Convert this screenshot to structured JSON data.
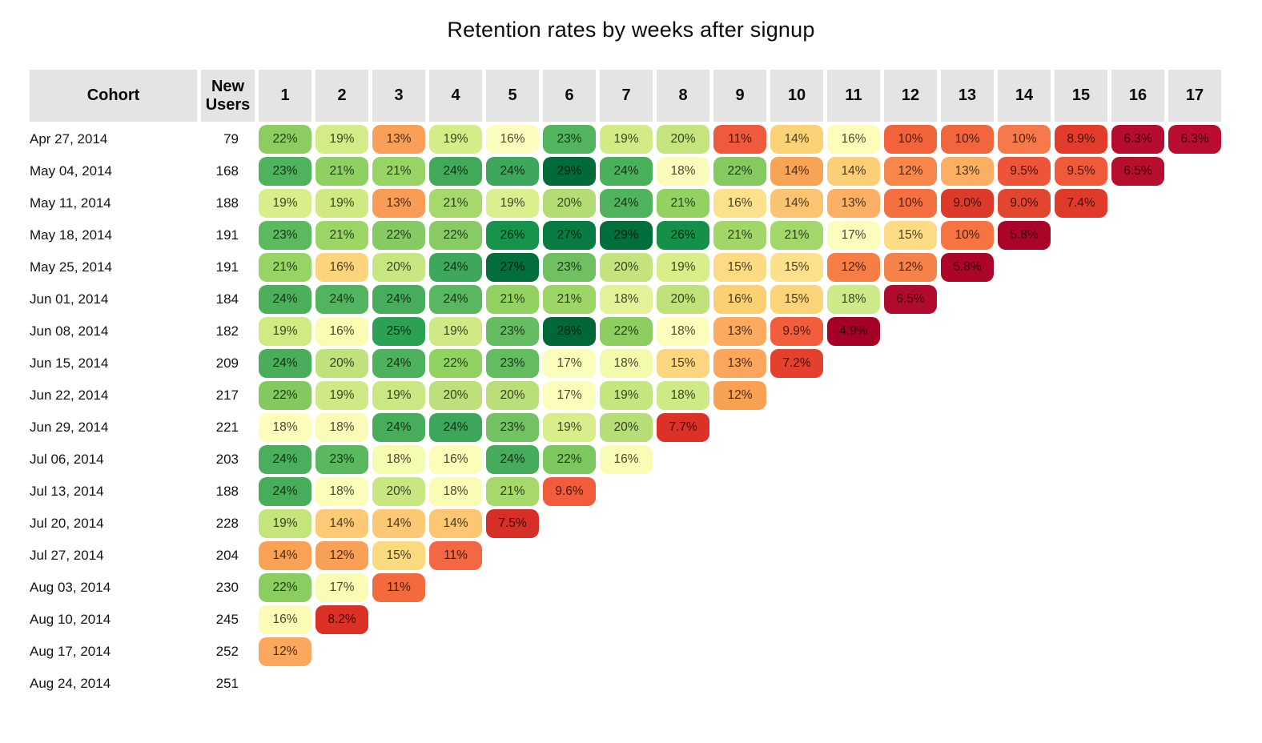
{
  "title": "Retention rates by weeks after signup",
  "colors": {
    "page_background": "#ffffff",
    "header_cell_background": "#e4e4e4",
    "header_text": "#0a0a0a",
    "cell_text": "#3a3a3a",
    "scale_high_green": "#006838",
    "scale_mid_yellow": "#ffffbf",
    "scale_low_red": "#a50026"
  },
  "chart_data": {
    "type": "heatmap",
    "title": "Retention rates by weeks after signup",
    "columns": [
      "Cohort",
      "New Users",
      "1",
      "2",
      "3",
      "4",
      "5",
      "6",
      "7",
      "8",
      "9",
      "10",
      "11",
      "12",
      "13",
      "14",
      "15",
      "16",
      "17"
    ],
    "color_scale": {
      "palette": "RdYlGn",
      "low_value_label": "4.9%",
      "high_value_label": "29%",
      "low_color": "#a50026",
      "high_color": "#006838"
    },
    "rows": [
      {
        "cohort": "Apr 27, 2014",
        "new_users": "79",
        "cells": [
          {
            "v": "22%",
            "c": "#8ccd5f"
          },
          {
            "v": "19%",
            "c": "#d3ec87"
          },
          {
            "v": "13%",
            "c": "#f99f58"
          },
          {
            "v": "19%",
            "c": "#d5ed89"
          },
          {
            "v": "16%",
            "c": "#fdfebe"
          },
          {
            "v": "23%",
            "c": "#52b45e"
          },
          {
            "v": "19%",
            "c": "#d2eb85"
          },
          {
            "v": "20%",
            "c": "#c4e57e"
          },
          {
            "v": "11%",
            "c": "#ef5a3c"
          },
          {
            "v": "14%",
            "c": "#fbd276"
          },
          {
            "v": "16%",
            "c": "#fbfdb9"
          },
          {
            "v": "10%",
            "c": "#f2633c"
          },
          {
            "v": "10%",
            "c": "#f2663e"
          },
          {
            "v": "10%",
            "c": "#f5794a"
          },
          {
            "v": "8.9%",
            "c": "#e23d2c"
          },
          {
            "v": "6.3%",
            "c": "#b50c30"
          },
          {
            "v": "6.3%",
            "c": "#ba0c31"
          }
        ]
      },
      {
        "cohort": "May 04, 2014",
        "new_users": "168",
        "cells": [
          {
            "v": "23%",
            "c": "#4fb25d"
          },
          {
            "v": "21%",
            "c": "#8fd062"
          },
          {
            "v": "21%",
            "c": "#97d365"
          },
          {
            "v": "24%",
            "c": "#42a95a"
          },
          {
            "v": "24%",
            "c": "#3ea75b"
          },
          {
            "v": "29%",
            "c": "#01693a"
          },
          {
            "v": "24%",
            "c": "#4bb05c"
          },
          {
            "v": "18%",
            "c": "#fbfcbc"
          },
          {
            "v": "22%",
            "c": "#84ca60"
          },
          {
            "v": "14%",
            "c": "#f9a356"
          },
          {
            "v": "14%",
            "c": "#fbce77"
          },
          {
            "v": "12%",
            "c": "#f8874b"
          },
          {
            "v": "13%",
            "c": "#fbaf63"
          },
          {
            "v": "9.5%",
            "c": "#ed5438"
          },
          {
            "v": "9.5%",
            "c": "#ef5a3b"
          },
          {
            "v": "6.5%",
            "c": "#b50f2b"
          }
        ]
      },
      {
        "cohort": "May 11, 2014",
        "new_users": "188",
        "cells": [
          {
            "v": "19%",
            "c": "#d8ee8b"
          },
          {
            "v": "19%",
            "c": "#cfe983"
          },
          {
            "v": "13%",
            "c": "#f99c55"
          },
          {
            "v": "21%",
            "c": "#a6d86c"
          },
          {
            "v": "19%",
            "c": "#daef8d"
          },
          {
            "v": "20%",
            "c": "#b4dc74"
          },
          {
            "v": "24%",
            "c": "#50b35e"
          },
          {
            "v": "21%",
            "c": "#92d263"
          },
          {
            "v": "16%",
            "c": "#fce18d"
          },
          {
            "v": "14%",
            "c": "#fcc471"
          },
          {
            "v": "13%",
            "c": "#fbb065"
          },
          {
            "v": "10%",
            "c": "#f57041"
          },
          {
            "v": "9.0%",
            "c": "#dd3b2a"
          },
          {
            "v": "9.0%",
            "c": "#e24530"
          },
          {
            "v": "7.4%",
            "c": "#e03a2b"
          }
        ]
      },
      {
        "cohort": "May 18, 2014",
        "new_users": "191",
        "cells": [
          {
            "v": "23%",
            "c": "#5cb960"
          },
          {
            "v": "21%",
            "c": "#9ad566"
          },
          {
            "v": "22%",
            "c": "#85ca62"
          },
          {
            "v": "22%",
            "c": "#88cb64"
          },
          {
            "v": "26%",
            "c": "#17944c"
          },
          {
            "v": "27%",
            "c": "#087b42"
          },
          {
            "v": "29%",
            "c": "#006f3c"
          },
          {
            "v": "26%",
            "c": "#149049"
          },
          {
            "v": "21%",
            "c": "#a2d669"
          },
          {
            "v": "21%",
            "c": "#a4d76b"
          },
          {
            "v": "17%",
            "c": "#fafdbb"
          },
          {
            "v": "15%",
            "c": "#fddc85"
          },
          {
            "v": "10%",
            "c": "#f67441"
          },
          {
            "v": "5.8%",
            "c": "#aa0429"
          }
        ]
      },
      {
        "cohort": "May 25, 2014",
        "new_users": "191",
        "cells": [
          {
            "v": "21%",
            "c": "#98d465"
          },
          {
            "v": "16%",
            "c": "#fbd47b"
          },
          {
            "v": "20%",
            "c": "#c7e680"
          },
          {
            "v": "24%",
            "c": "#3fa75c"
          },
          {
            "v": "27%",
            "c": "#016e3b"
          },
          {
            "v": "23%",
            "c": "#70c062"
          },
          {
            "v": "20%",
            "c": "#c3e47d"
          },
          {
            "v": "19%",
            "c": "#d7ee89"
          },
          {
            "v": "15%",
            "c": "#fcdb82"
          },
          {
            "v": "15%",
            "c": "#fce08c"
          },
          {
            "v": "12%",
            "c": "#f67e45"
          },
          {
            "v": "12%",
            "c": "#f58247"
          },
          {
            "v": "5.8%",
            "c": "#ab0529"
          }
        ]
      },
      {
        "cohort": "Jun 01, 2014",
        "new_users": "184",
        "cells": [
          {
            "v": "24%",
            "c": "#4cb05b"
          },
          {
            "v": "24%",
            "c": "#52b45e"
          },
          {
            "v": "24%",
            "c": "#47ac5b"
          },
          {
            "v": "24%",
            "c": "#58b760"
          },
          {
            "v": "21%",
            "c": "#92d263"
          },
          {
            "v": "21%",
            "c": "#9dd567"
          },
          {
            "v": "18%",
            "c": "#e3f298"
          },
          {
            "v": "20%",
            "c": "#c0e27b"
          },
          {
            "v": "16%",
            "c": "#fbd072"
          },
          {
            "v": "15%",
            "c": "#fbd47a"
          },
          {
            "v": "18%",
            "c": "#cdea8a"
          },
          {
            "v": "6.5%",
            "c": "#b00b2c"
          }
        ]
      },
      {
        "cohort": "Jun 08, 2014",
        "new_users": "182",
        "cells": [
          {
            "v": "19%",
            "c": "#d1ea83"
          },
          {
            "v": "16%",
            "c": "#f9fcb2"
          },
          {
            "v": "25%",
            "c": "#2ba154"
          },
          {
            "v": "19%",
            "c": "#cee986"
          },
          {
            "v": "23%",
            "c": "#66bd61"
          },
          {
            "v": "28%",
            "c": "#006838"
          },
          {
            "v": "22%",
            "c": "#8cce60"
          },
          {
            "v": "18%",
            "c": "#fdfebb"
          },
          {
            "v": "13%",
            "c": "#fbaa60"
          },
          {
            "v": "9.9%",
            "c": "#f25e3c"
          },
          {
            "v": "4.9%",
            "c": "#a50026"
          }
        ]
      },
      {
        "cohort": "Jun 15, 2014",
        "new_users": "209",
        "cells": [
          {
            "v": "24%",
            "c": "#49ad5c"
          },
          {
            "v": "20%",
            "c": "#c0e27c"
          },
          {
            "v": "24%",
            "c": "#4db15d"
          },
          {
            "v": "22%",
            "c": "#92d263"
          },
          {
            "v": "23%",
            "c": "#64bc61"
          },
          {
            "v": "17%",
            "c": "#fbfdba"
          },
          {
            "v": "18%",
            "c": "#f3faac"
          },
          {
            "v": "15%",
            "c": "#fdd680"
          },
          {
            "v": "13%",
            "c": "#fba55d"
          },
          {
            "v": "7.2%",
            "c": "#e3412d"
          }
        ]
      },
      {
        "cohort": "Jun 22, 2014",
        "new_users": "217",
        "cells": [
          {
            "v": "22%",
            "c": "#83c960"
          },
          {
            "v": "19%",
            "c": "#cee985"
          },
          {
            "v": "19%",
            "c": "#c9e783"
          },
          {
            "v": "20%",
            "c": "#bde07c"
          },
          {
            "v": "20%",
            "c": "#badf7a"
          },
          {
            "v": "17%",
            "c": "#fbfdbb"
          },
          {
            "v": "19%",
            "c": "#c4e67f"
          },
          {
            "v": "18%",
            "c": "#cdea86"
          },
          {
            "v": "12%",
            "c": "#f9a153"
          }
        ]
      },
      {
        "cohort": "Jun 29, 2014",
        "new_users": "221",
        "cells": [
          {
            "v": "18%",
            "c": "#fdfebc"
          },
          {
            "v": "18%",
            "c": "#f9fcb6"
          },
          {
            "v": "24%",
            "c": "#48ad5b"
          },
          {
            "v": "24%",
            "c": "#3da65b"
          },
          {
            "v": "23%",
            "c": "#72c263"
          },
          {
            "v": "19%",
            "c": "#d8ee8b"
          },
          {
            "v": "20%",
            "c": "#b6dd76"
          },
          {
            "v": "7.7%",
            "c": "#dc3128"
          }
        ]
      },
      {
        "cohort": "Jul 06, 2014",
        "new_users": "203",
        "cells": [
          {
            "v": "24%",
            "c": "#4aae5c"
          },
          {
            "v": "23%",
            "c": "#5ab85f"
          },
          {
            "v": "18%",
            "c": "#f5fbaf"
          },
          {
            "v": "16%",
            "c": "#fbfdb8"
          },
          {
            "v": "24%",
            "c": "#46ab5b"
          },
          {
            "v": "22%",
            "c": "#7ec75f"
          },
          {
            "v": "16%",
            "c": "#f9fcb5"
          }
        ]
      },
      {
        "cohort": "Jul 13, 2014",
        "new_users": "188",
        "cells": [
          {
            "v": "24%",
            "c": "#48ad5b"
          },
          {
            "v": "18%",
            "c": "#fbfdb9"
          },
          {
            "v": "20%",
            "c": "#c9e780"
          },
          {
            "v": "18%",
            "c": "#f8fcb4"
          },
          {
            "v": "21%",
            "c": "#a7d86c"
          },
          {
            "v": "9.6%",
            "c": "#f15c3c"
          }
        ]
      },
      {
        "cohort": "Jul 20, 2014",
        "new_users": "228",
        "cells": [
          {
            "v": "19%",
            "c": "#c4e47c"
          },
          {
            "v": "14%",
            "c": "#fcca74"
          },
          {
            "v": "14%",
            "c": "#fcc873"
          },
          {
            "v": "14%",
            "c": "#fcc672"
          },
          {
            "v": "7.5%",
            "c": "#d62f27"
          }
        ]
      },
      {
        "cohort": "Jul 27, 2014",
        "new_users": "204",
        "cells": [
          {
            "v": "14%",
            "c": "#f9a155"
          },
          {
            "v": "12%",
            "c": "#f9a058"
          },
          {
            "v": "15%",
            "c": "#fbd97e"
          },
          {
            "v": "11%",
            "c": "#f26744"
          }
        ]
      },
      {
        "cohort": "Aug 03, 2014",
        "new_users": "230",
        "cells": [
          {
            "v": "22%",
            "c": "#8bce60"
          },
          {
            "v": "17%",
            "c": "#f9fcb4"
          },
          {
            "v": "11%",
            "c": "#f26a3e"
          }
        ]
      },
      {
        "cohort": "Aug 10, 2014",
        "new_users": "245",
        "cells": [
          {
            "v": "16%",
            "c": "#fbfcb6"
          },
          {
            "v": "8.2%",
            "c": "#da3026"
          }
        ]
      },
      {
        "cohort": "Aug 17, 2014",
        "new_users": "252",
        "cells": [
          {
            "v": "12%",
            "c": "#f9a85e"
          }
        ]
      },
      {
        "cohort": "Aug 24, 2014",
        "new_users": "251",
        "cells": []
      }
    ]
  }
}
